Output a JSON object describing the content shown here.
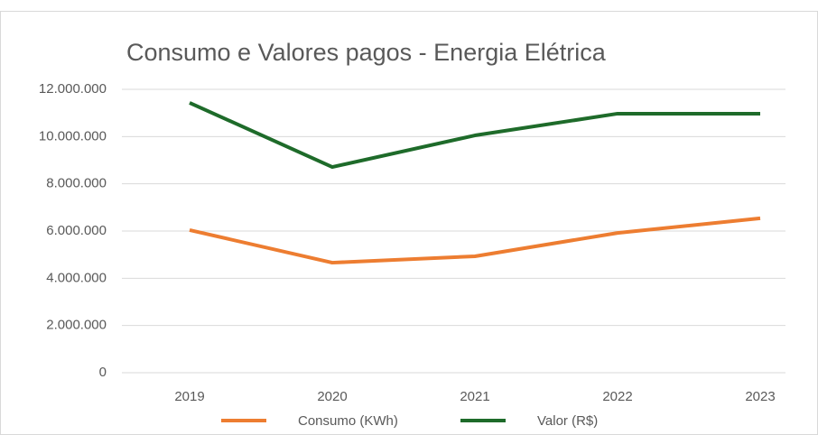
{
  "chart_data": {
    "type": "line",
    "title": "Consumo e Valores pagos - Energia Elétrica",
    "categories": [
      "2019",
      "2020",
      "2021",
      "2022",
      "2023"
    ],
    "series": [
      {
        "name": "Consumo (KWh)",
        "color": "#ed7d31",
        "values": [
          6040000,
          4660000,
          4930000,
          5920000,
          6540000
        ]
      },
      {
        "name": "Valor (R$)",
        "color": "#1e6b2a",
        "values": [
          11430000,
          8710000,
          10050000,
          10970000,
          10970000
        ]
      }
    ],
    "ylim": [
      0,
      12000000
    ],
    "yticks": [
      0,
      {
        "value": 2000000,
        "label": "2.000.000"
      },
      {
        "value": 4000000,
        "label": "4.000.000"
      },
      {
        "value": 6000000,
        "label": "6.000.000"
      },
      {
        "value": 8000000,
        "label": "8.000.000"
      },
      {
        "value": 10000000,
        "label": "10.000.000"
      },
      {
        "value": 12000000,
        "label": "12.000.000"
      }
    ],
    "grid": true,
    "legend": "bottom"
  }
}
